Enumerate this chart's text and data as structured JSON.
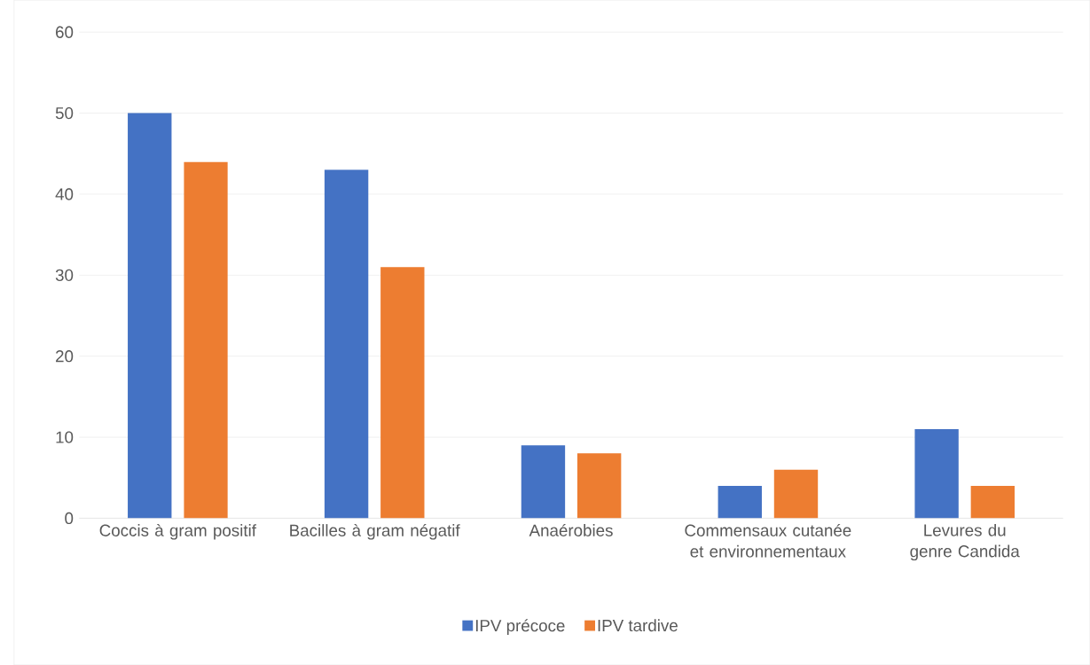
{
  "chart_data": {
    "type": "bar",
    "categories": [
      "Coccis à gram positif",
      "Bacilles à gram négatif",
      "Anaérobies",
      "Commensaux cutanée et environnementaux",
      "Levures du genre Candida"
    ],
    "series": [
      {
        "name": "IPV précoce",
        "color": "#4472c4",
        "values": [
          50,
          43,
          9,
          4,
          11
        ]
      },
      {
        "name": "IPV tardive",
        "color": "#ed7d31",
        "values": [
          44,
          31,
          8,
          6,
          4
        ]
      }
    ],
    "ylim": [
      0,
      60
    ],
    "yticks": [
      0,
      10,
      20,
      30,
      40,
      50,
      60
    ],
    "grid": "y",
    "legend": "bottom"
  }
}
